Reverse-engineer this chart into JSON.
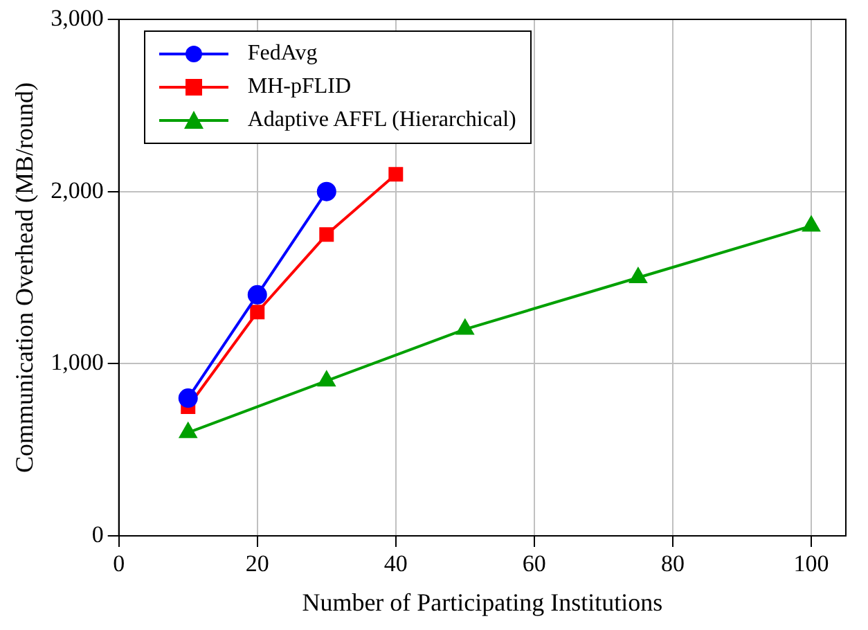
{
  "chart_data": {
    "type": "line",
    "xlabel": "Number of Participating Institutions",
    "ylabel": "Communication Overhead (MB/round)",
    "xlim": [
      0,
      105
    ],
    "xticks": [
      0,
      20,
      40,
      60,
      80,
      100
    ],
    "ylim": [
      0,
      3000
    ],
    "yticks": [
      0,
      {
        "value": 1000,
        "label": "1,000"
      },
      {
        "value": 2000,
        "label": "2,000"
      },
      {
        "value": 3000,
        "label": "3,000"
      }
    ],
    "grid": true,
    "legend": "top left",
    "line_style": "solid",
    "series": [
      {
        "name": "FedAvg",
        "color": "#0000ff",
        "marker": "circle",
        "x": [
          10,
          20,
          30
        ],
        "values": [
          800,
          1400,
          2000
        ]
      },
      {
        "name": "MH-pFLID",
        "color": "#ff0000",
        "marker": "square",
        "x": [
          10,
          20,
          30,
          40
        ],
        "values": [
          750,
          1300,
          1750,
          2100
        ]
      },
      {
        "name": "Adaptive AFFL (Hierarchical)",
        "color": "#00a000",
        "marker": "triangle",
        "x": [
          10,
          30,
          50,
          75,
          100
        ],
        "values": [
          600,
          900,
          1200,
          1500,
          1800
        ]
      }
    ]
  }
}
